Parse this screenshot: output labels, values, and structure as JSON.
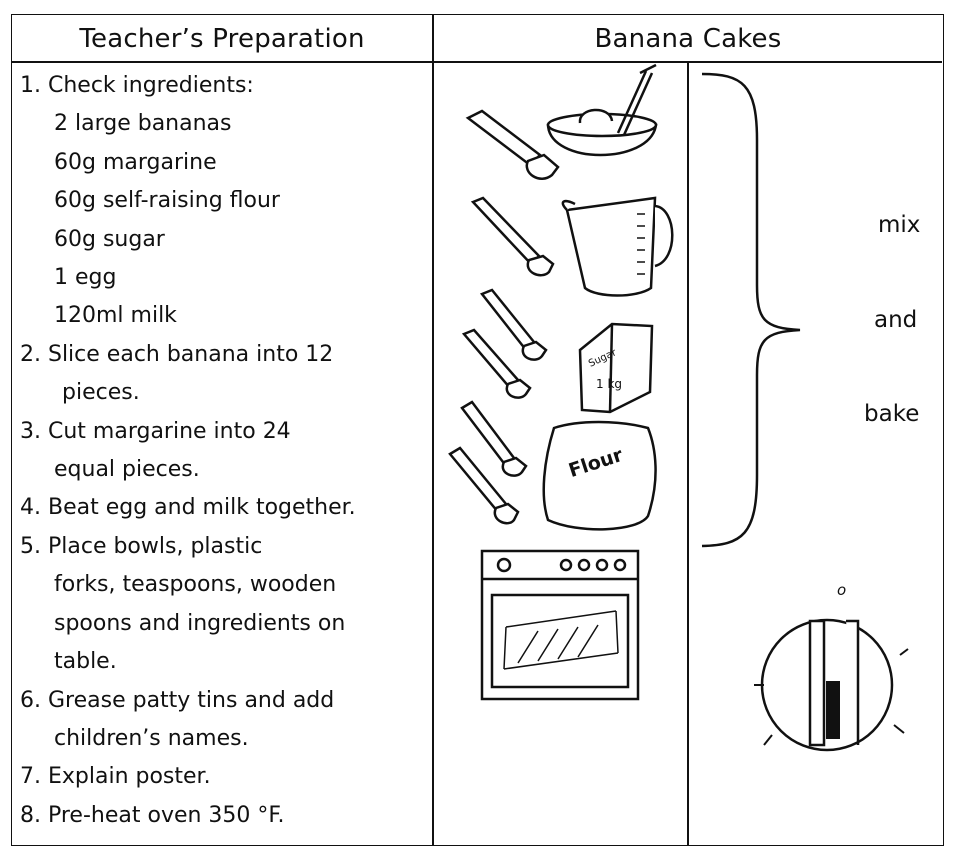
{
  "headers": {
    "left": "Teacher’s Preparation",
    "right": "Banana Cakes"
  },
  "steps": [
    {
      "text": "1. Check ingredients:",
      "indent": 0
    },
    {
      "text": "2 large bananas",
      "indent": 1
    },
    {
      "text": "60g margarine",
      "indent": 1
    },
    {
      "text": "60g self-raising flour",
      "indent": 1
    },
    {
      "text": "60g sugar",
      "indent": 1
    },
    {
      "text": "1 egg",
      "indent": 1
    },
    {
      "text": "120ml milk",
      "indent": 1
    },
    {
      "text": "2. Slice each banana into 12",
      "indent": 0
    },
    {
      "text": "pieces.",
      "indent": 2
    },
    {
      "text": "3. Cut margarine into 24",
      "indent": 0
    },
    {
      "text": "equal pieces.",
      "indent": 1
    },
    {
      "text": "4. Beat egg and milk together.",
      "indent": 0
    },
    {
      "text": "5. Place bowls, plastic",
      "indent": 0
    },
    {
      "text": "forks, teaspoons, wooden",
      "indent": 1
    },
    {
      "text": "spoons and ingredients on",
      "indent": 1
    },
    {
      "text": "table.",
      "indent": 1
    },
    {
      "text": "6. Grease patty tins and add",
      "indent": 0
    },
    {
      "text": "children’s names.",
      "indent": 1
    },
    {
      "text": "7. Explain poster.",
      "indent": 0
    },
    {
      "text": "8. Pre-heat oven 350 °F.",
      "indent": 0
    }
  ],
  "method": {
    "words": [
      "mix",
      "and",
      "bake"
    ]
  },
  "illustrations": {
    "sugar_label": "Sugar",
    "sugar_weight": "1 kg",
    "flour_label": "Flour",
    "dial_mark": "o"
  }
}
